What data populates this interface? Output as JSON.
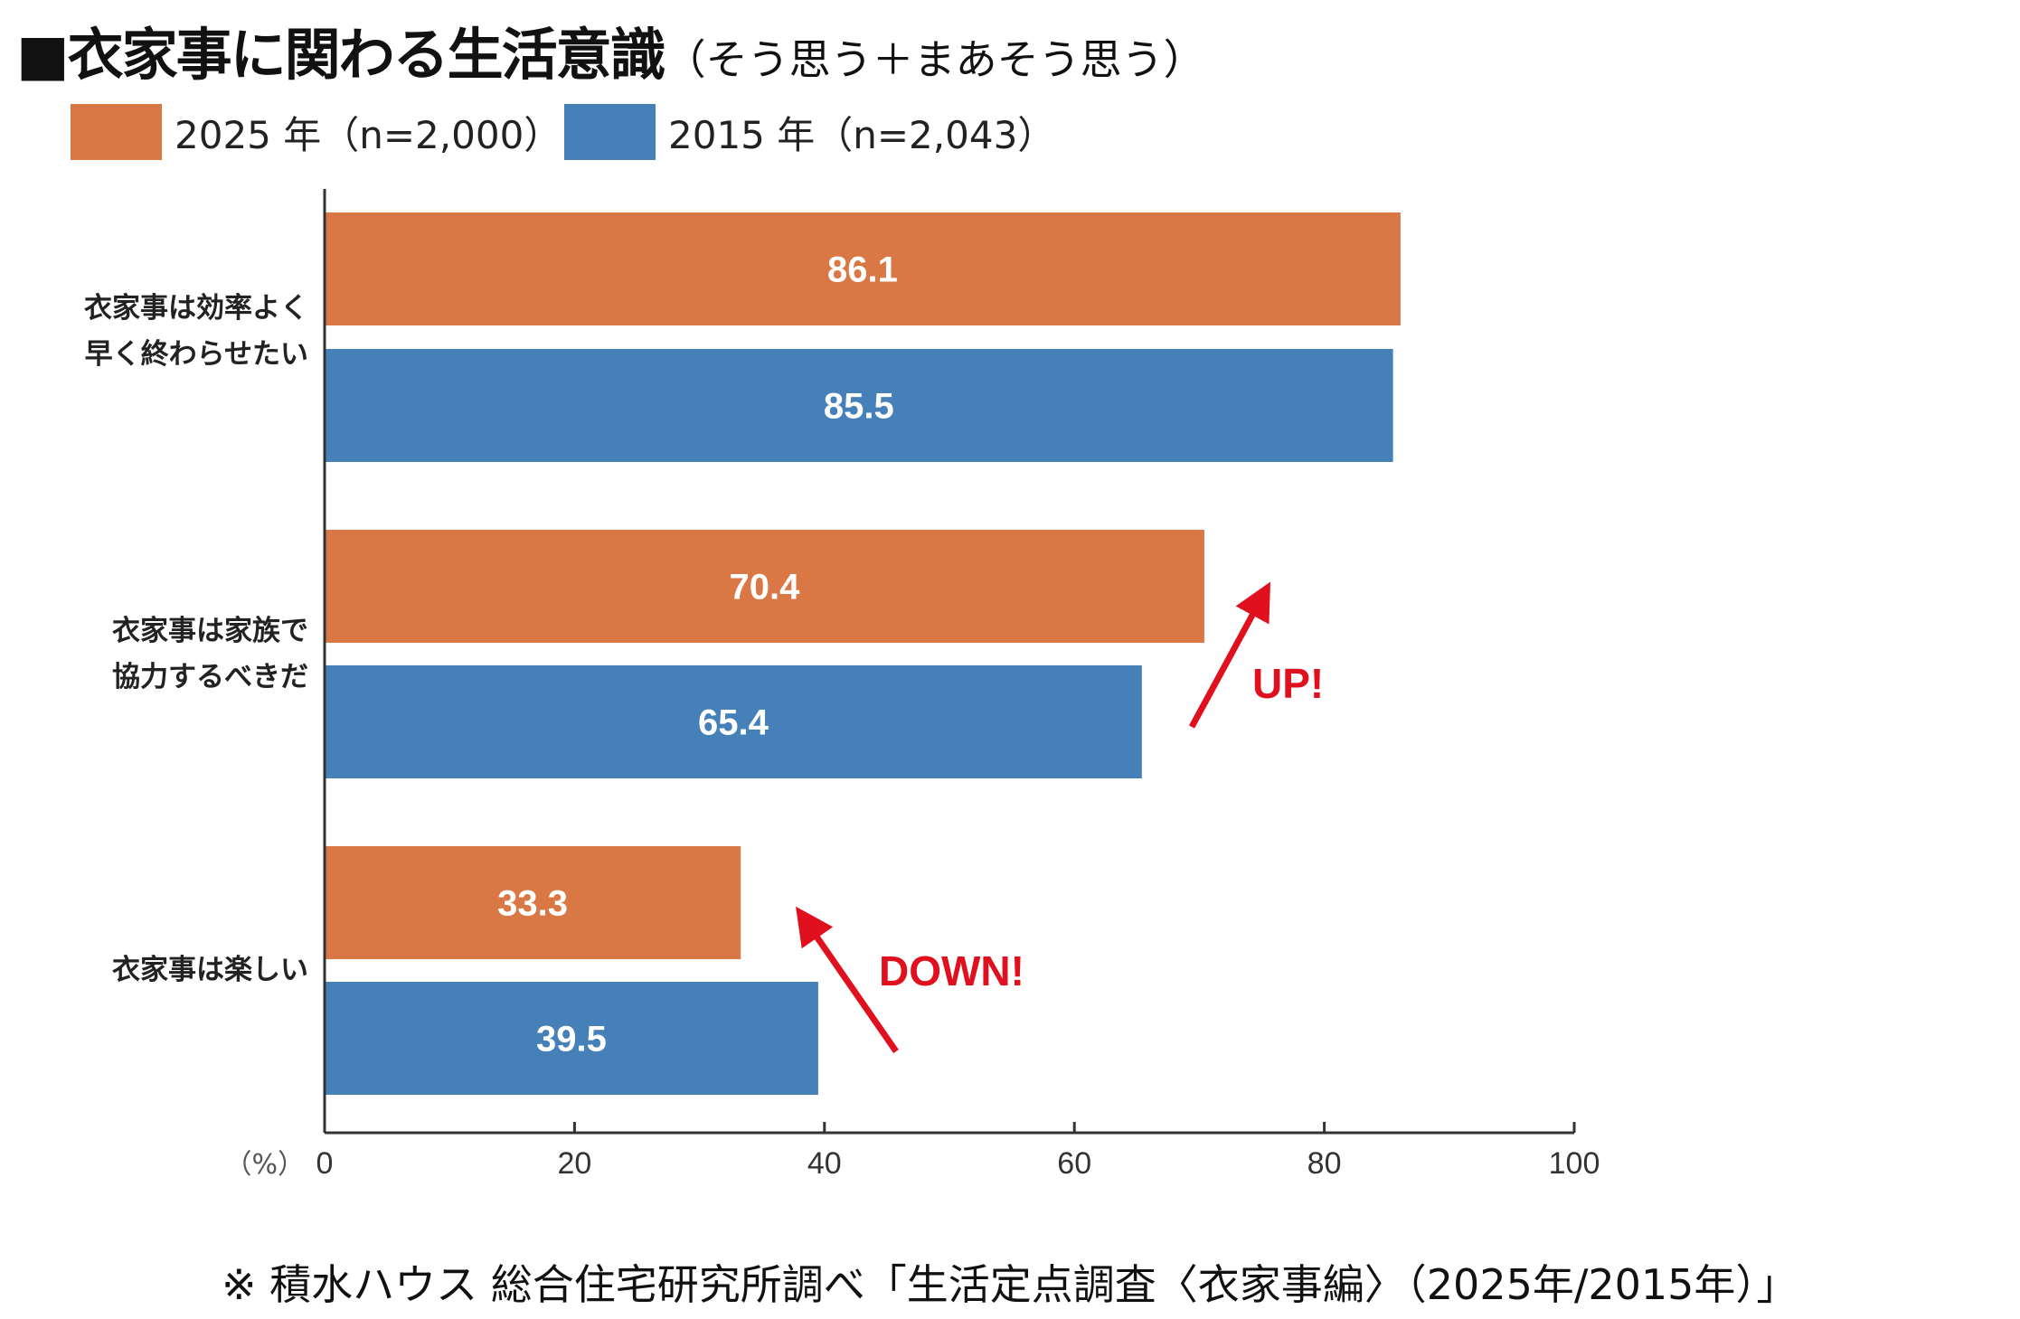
{
  "title": {
    "main": "■衣家事に関わる生活意識",
    "sub": "（そう思う＋まあそう思う）"
  },
  "footnote": "※ 積水ハウス 総合住宅研究所調べ「生活定点調査〈衣家事編〉（2025年/2015年）」",
  "colors": {
    "2025": "#D97845",
    "2015": "#4680B8",
    "annotation": "#E0101E"
  },
  "chart_data": {
    "type": "bar",
    "orientation": "horizontal",
    "categories": [
      "衣家事は効率よく早く終わらせたい",
      "衣家事は家族で協力するべきだ",
      "衣家事は楽しい"
    ],
    "category_lines": [
      [
        "衣家事は効率よく",
        "早く終わらせたい"
      ],
      [
        "衣家事は家族で",
        "協力するべきだ"
      ],
      [
        "衣家事は楽しい"
      ]
    ],
    "series": [
      {
        "name": "2025 年（n=2,000）",
        "values": [
          86.1,
          70.4,
          33.3
        ]
      },
      {
        "name": "2015 年（n=2,043）",
        "values": [
          85.5,
          65.4,
          39.5
        ]
      }
    ],
    "xlim": [
      0,
      100
    ],
    "xticks": [
      0,
      20,
      40,
      60,
      80,
      100
    ],
    "xlabel": "（%）",
    "legend": "top-left",
    "grid": false,
    "annotations": [
      {
        "text": "UP!",
        "category": "衣家事は家族で協力するべきだ",
        "direction": "up"
      },
      {
        "text": "DOWN!",
        "category": "衣家事は楽しい",
        "direction": "down"
      }
    ]
  }
}
